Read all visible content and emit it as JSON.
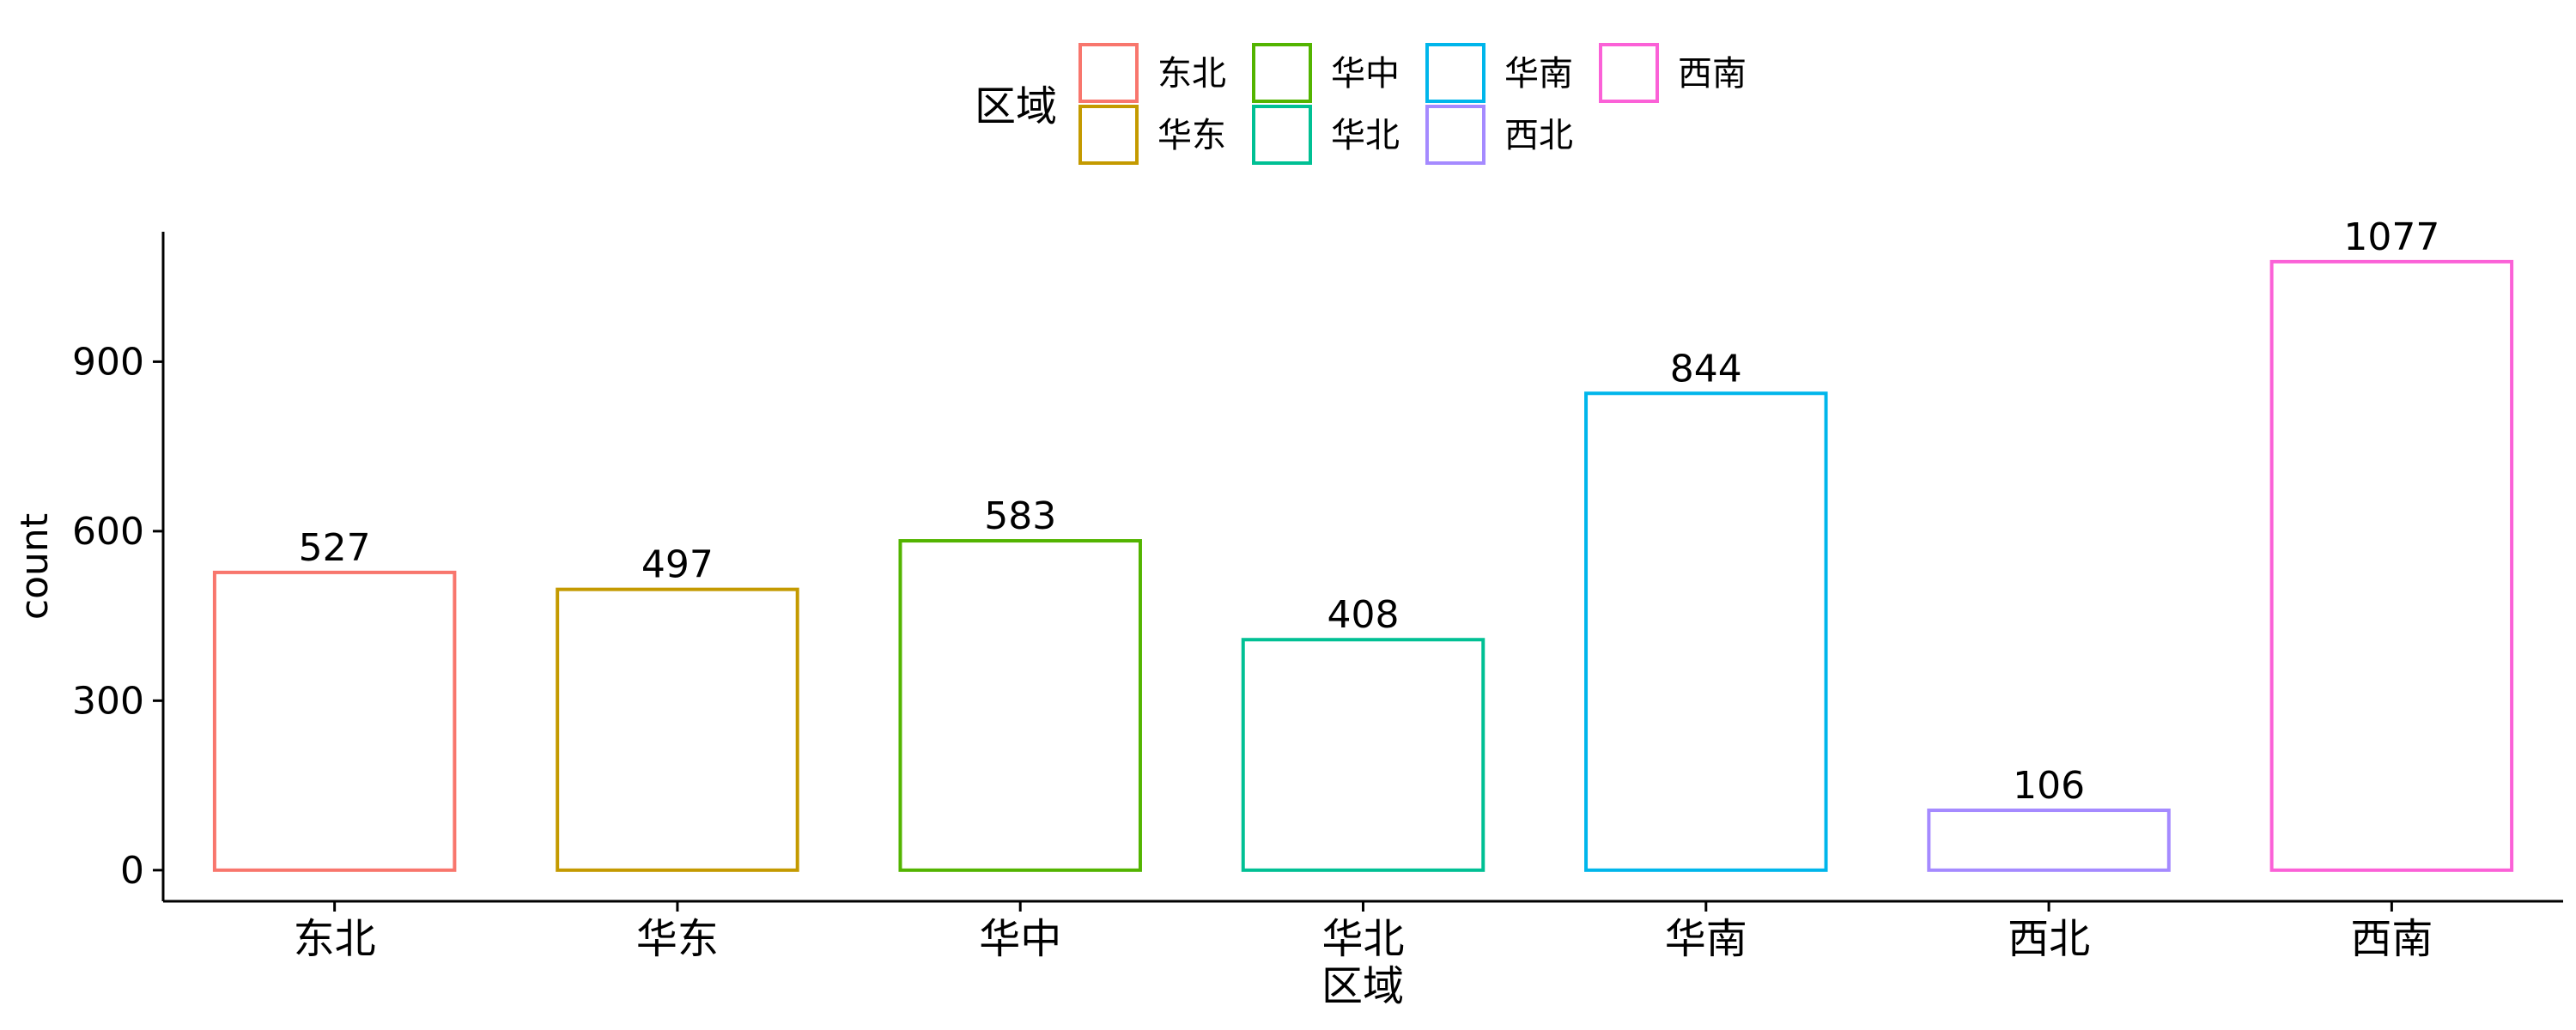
{
  "chart_data": {
    "type": "bar",
    "categories": [
      "东北",
      "华东",
      "华中",
      "华北",
      "华南",
      "西北",
      "西南"
    ],
    "values": [
      527,
      497,
      583,
      408,
      844,
      106,
      1077
    ],
    "colors": [
      "#F8766D",
      "#C49A00",
      "#53B400",
      "#00C094",
      "#00B6EB",
      "#A58AFF",
      "#FB61D7"
    ],
    "xlabel": "区域",
    "ylabel": "count",
    "ylim": [
      -55,
      1130
    ],
    "yticks": [
      0,
      300,
      600,
      900
    ],
    "grid": false,
    "legend": {
      "title": "区域",
      "position": "top",
      "entries": [
        "东北",
        "华东",
        "华中",
        "华北",
        "华南",
        "西北",
        "西南"
      ]
    }
  }
}
